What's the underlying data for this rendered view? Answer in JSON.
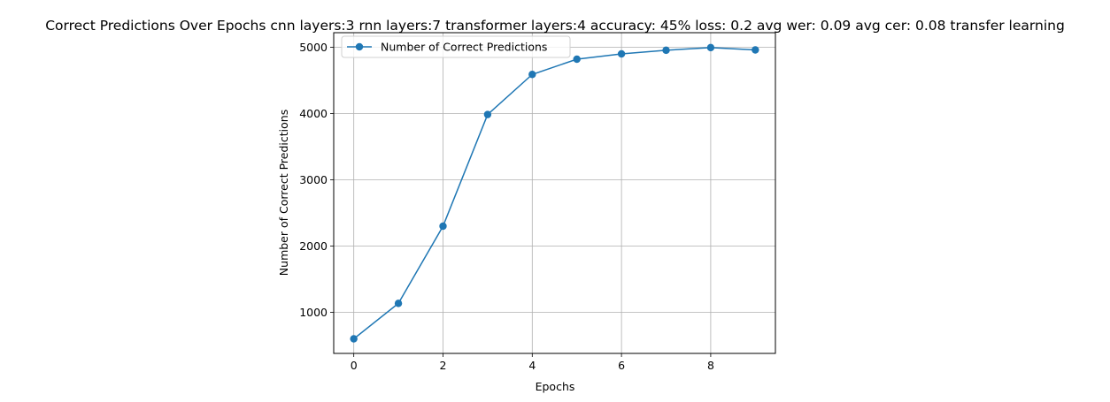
{
  "chart_data": {
    "type": "line",
    "title": "Correct Predictions Over Epochs cnn layers:3 rnn layers:7 transformer layers:4 accuracy: 45% loss: 0.2 avg wer: 0.09 avg cer: 0.08 transfer learning",
    "xlabel": "Epochs",
    "ylabel": "Number of Correct Predictions",
    "x": [
      0,
      1,
      2,
      3,
      4,
      5,
      6,
      7,
      8,
      9
    ],
    "series": [
      {
        "name": "Number of Correct Predictions",
        "values": [
          600,
          1135,
          2300,
          3985,
          4590,
          4820,
          4900,
          4955,
          4995,
          4960
        ],
        "color": "#1f77b4",
        "marker": "circle"
      }
    ],
    "xlim": [
      -0.45,
      9.45
    ],
    "ylim": [
      380,
      5220
    ],
    "xticks": [
      0,
      2,
      4,
      6,
      8
    ],
    "yticks": [
      1000,
      2000,
      3000,
      4000,
      5000
    ],
    "grid": true,
    "legend_position": "upper-left"
  }
}
